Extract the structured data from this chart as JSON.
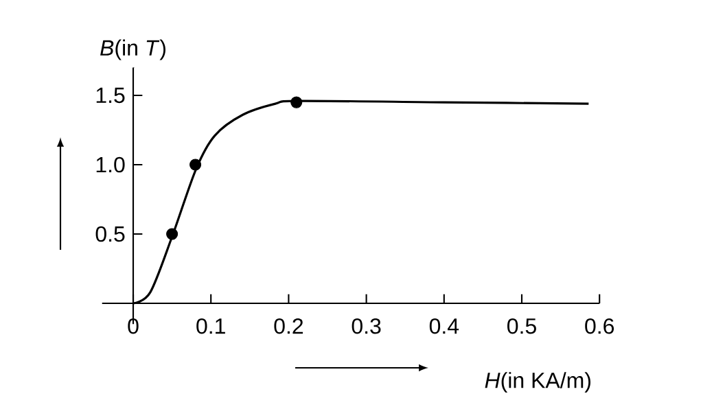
{
  "chart_data": {
    "type": "line",
    "xlabel": "*H*(in KA/m)",
    "ylabel": "*B*(in *T*)",
    "xlim": [
      -0.04,
      0.6
    ],
    "ylim": [
      -0.15,
      1.7
    ],
    "xticks": [
      0,
      0.1,
      0.2,
      0.3,
      0.4,
      0.5,
      0.6
    ],
    "yticks": [
      0.5,
      {
        "value": 1,
        "label": "1.0"
      },
      1.5
    ],
    "series": [
      {
        "color": "#000000",
        "marker": "none",
        "x": [
          0,
          0.022,
          0.05,
          0.081,
          0.105,
          0.141,
          0.183,
          0.214,
          0.4,
          0.586
        ],
        "values": [
          0,
          0.08,
          0.48,
          0.97,
          1.21,
          1.36,
          1.44,
          1.46,
          1.45,
          1.44
        ]
      },
      {
        "type": "scatter",
        "color": "#000000",
        "marker": "circle",
        "x": [
          0.05,
          0.08,
          0.21
        ],
        "values": [
          0.5,
          1.0,
          1.45
        ]
      }
    ]
  }
}
